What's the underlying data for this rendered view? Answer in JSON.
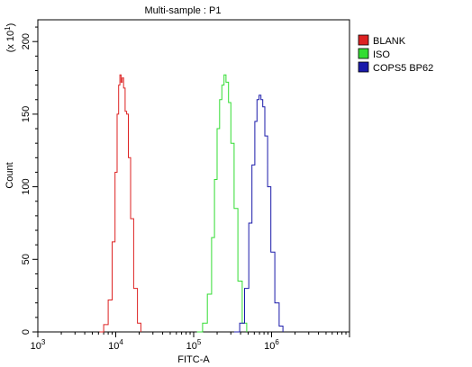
{
  "chart_data": {
    "type": "line",
    "title": "Multi-sample : P1",
    "xlabel": "FITC-A",
    "ylabel": "Count",
    "y_multiplier_label": "(x 10",
    "y_multiplier_exp": "1",
    "x_scale": "log",
    "xlim": [
      1000,
      10000000
    ],
    "ylim": [
      0,
      215
    ],
    "x_ticks": [
      {
        "base": "10",
        "exp": "3",
        "value": 1000
      },
      {
        "base": "10",
        "exp": "4",
        "value": 10000
      },
      {
        "base": "10",
        "exp": "5",
        "value": 100000
      },
      {
        "base": "10",
        "exp": "6",
        "value": 1000000
      }
    ],
    "y_ticks": [
      0,
      50,
      100,
      150,
      200
    ],
    "legend_position": "right",
    "series": [
      {
        "name": "BLANK",
        "color": "#dd2222",
        "x": [
          6200,
          7000,
          8000,
          9000,
          9800,
          10400,
          10900,
          11300,
          11700,
          12100,
          12600,
          13200,
          13800,
          14500,
          15500,
          17000,
          19000,
          21000
        ],
        "y": [
          0,
          5,
          22,
          62,
          110,
          150,
          170,
          177,
          172,
          175,
          168,
          152,
          150,
          120,
          78,
          30,
          6,
          0
        ]
      },
      {
        "name": "ISO",
        "color": "#33dd33",
        "x": [
          110000,
          130000,
          150000,
          170000,
          185000,
          200000,
          215000,
          230000,
          245000,
          260000,
          280000,
          300000,
          330000,
          370000,
          420000,
          480000
        ],
        "y": [
          0,
          6,
          26,
          65,
          105,
          140,
          160,
          170,
          177,
          172,
          158,
          130,
          85,
          35,
          6,
          0
        ]
      },
      {
        "name": "COPS5 BP62",
        "color": "#1a1aaa",
        "x": [
          330000,
          390000,
          450000,
          510000,
          560000,
          610000,
          650000,
          690000,
          730000,
          770000,
          820000,
          890000,
          980000,
          1100000,
          1250000,
          1400000
        ],
        "y": [
          0,
          6,
          30,
          75,
          115,
          145,
          160,
          163,
          160,
          155,
          135,
          100,
          55,
          20,
          4,
          0
        ]
      }
    ]
  }
}
